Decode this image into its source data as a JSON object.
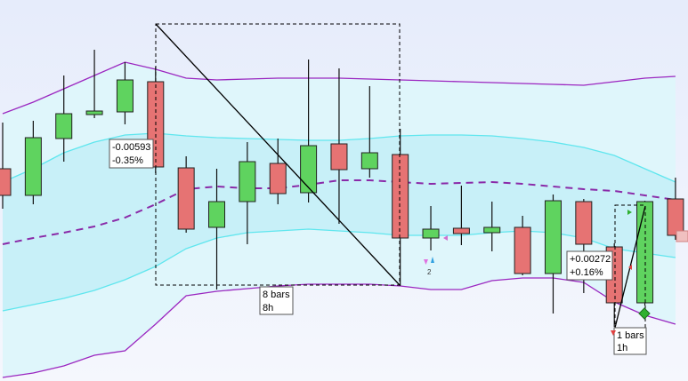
{
  "chart_data": {
    "type": "candlestick",
    "categories": [
      null,
      null,
      null,
      null,
      null,
      null,
      null,
      null,
      null,
      null,
      null,
      null,
      null,
      null,
      null,
      null,
      null,
      null,
      null,
      null,
      null,
      null,
      null
    ],
    "open": [
      1.6912,
      1.6906,
      1.69188,
      1.69242,
      1.69248,
      1.69316,
      1.69122,
      1.68988,
      1.69046,
      1.69132,
      1.69066,
      1.69176,
      1.6912,
      1.69152,
      1.68964,
      1.68986,
      1.68976,
      1.68988,
      1.68884,
      1.69046,
      1.68944,
      1.68818,
      1.69052
    ],
    "high": [
      1.69224,
      1.69228,
      1.6933,
      1.69388,
      1.6936,
      1.6935,
      1.69148,
      1.6912,
      1.6918,
      1.69188,
      1.69366,
      1.69346,
      1.69306,
      1.6921,
      1.69036,
      1.69082,
      1.69046,
      1.69014,
      1.69062,
      1.69052,
      1.68952,
      1.69048,
      1.691
    ],
    "low": [
      1.6903,
      1.6904,
      1.69136,
      1.69234,
      1.6922,
      1.6911,
      1.68976,
      1.68848,
      1.6895,
      1.6904,
      1.69044,
      1.68996,
      1.691,
      1.68856,
      1.68936,
      1.68948,
      1.68934,
      1.6888,
      1.68794,
      1.6884,
      1.68764,
      1.68812,
      1.6896
    ],
    "close": [
      1.6906,
      1.6919,
      1.69244,
      1.6925,
      1.6932,
      1.69124,
      1.68984,
      1.69046,
      1.69136,
      1.69064,
      1.69172,
      1.69118,
      1.69156,
      1.68964,
      1.68984,
      1.68974,
      1.68988,
      1.68884,
      1.69048,
      1.6895,
      1.68818,
      1.69046,
      1.6897
    ],
    "up_color": "#5fd35f",
    "down_color": "#e67373",
    "ylim": [
      1.68642,
      1.695
    ],
    "series": [
      {
        "color": "#9b27c0",
        "values": [
          1.69244,
          1.6927,
          1.693,
          1.6933,
          1.6936,
          1.69344,
          1.69324,
          1.6932,
          1.69322,
          1.69324,
          1.69324,
          1.69324,
          1.69322,
          1.6932,
          1.69318,
          1.69316,
          1.69314,
          1.69312,
          1.6931,
          1.69308,
          1.69316,
          1.69324,
          1.69328
        ]
      },
      {
        "color": "#5fe6ee",
        "values": [
          1.6909,
          1.6912,
          1.69156,
          1.6918,
          1.69196,
          1.692,
          1.69194,
          1.6919,
          1.69188,
          1.69186,
          1.69184,
          1.69184,
          1.69188,
          1.69194,
          1.69196,
          1.69196,
          1.69194,
          1.69188,
          1.6918,
          1.69168,
          1.6915,
          1.6912,
          1.6909
        ]
      },
      {
        "color": "#8a2aa8",
        "dashed": true,
        "values": [
          1.6895,
          1.68964,
          1.68976,
          1.6899,
          1.6901,
          1.6904,
          1.69074,
          1.6908,
          1.69076,
          1.69076,
          1.69084,
          1.69094,
          1.69094,
          1.6909,
          1.69086,
          1.69088,
          1.6909,
          1.69086,
          1.6908,
          1.69074,
          1.6907,
          1.6906,
          1.6905
        ]
      },
      {
        "color": "#5fe6ee",
        "values": [
          1.688,
          1.68814,
          1.68828,
          1.68846,
          1.6887,
          1.689,
          1.6894,
          1.68964,
          1.68976,
          1.6898,
          1.68984,
          1.6898,
          1.68976,
          1.6897,
          1.6897,
          1.6897,
          1.68976,
          1.6898,
          1.68976,
          1.68964,
          1.6894,
          1.6893,
          1.6892
        ]
      },
      {
        "color": "#9b27c0",
        "values": [
          1.6865,
          1.6866,
          1.68676,
          1.687,
          1.6871,
          1.6877,
          1.68834,
          1.68844,
          1.6885,
          1.68856,
          1.6886,
          1.6886,
          1.6886,
          1.68856,
          1.68848,
          1.68848,
          1.68868,
          1.68874,
          1.68874,
          1.68864,
          1.6882,
          1.6879,
          1.6877
        ]
      }
    ],
    "annotations": [
      {
        "text": [
          "-0.00593",
          "-0.35%"
        ]
      },
      {
        "text": [
          "8 bars",
          "8h"
        ]
      },
      {
        "text": [
          "+0.00272",
          "+0.16%"
        ]
      },
      {
        "text": [
          "1 bars",
          "1h"
        ]
      },
      {
        "text": "2"
      }
    ]
  }
}
